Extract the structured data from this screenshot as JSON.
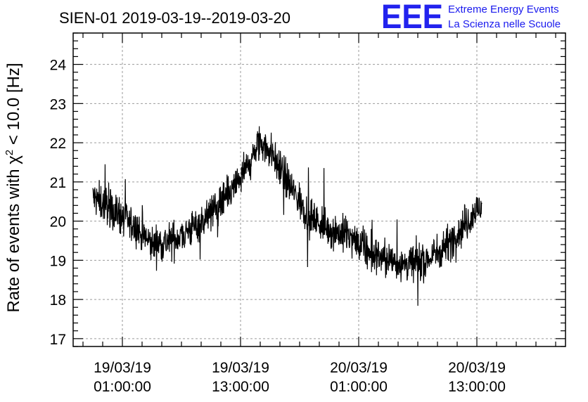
{
  "logo": {
    "mark": "EEE",
    "line1": "Extreme Energy Events",
    "line2": "La Scienza nelle Scuole",
    "color": "#2020ee"
  },
  "chart_data": {
    "type": "line",
    "title": "SIEN-01 2019-03-19--2019-03-20",
    "ylabel_prefix": "Rate of events with ",
    "ylabel_symbol": "χ",
    "ylabel_exponent": "2",
    "ylabel_suffix": " < 10.0 [Hz]",
    "xlabel": "",
    "ylim": [
      16.8,
      24.8
    ],
    "yticks": [
      17,
      18,
      19,
      20,
      21,
      22,
      23,
      24
    ],
    "xlim": [
      "2019-03-18T20:00:00",
      "2019-03-20T22:00:00"
    ],
    "xticks": [
      {
        "t": "2019-03-19T01:00:00",
        "date": "19/03/19",
        "time": "01:00:00"
      },
      {
        "t": "2019-03-19T13:00:00",
        "date": "19/03/19",
        "time": "13:00:00"
      },
      {
        "t": "2019-03-20T01:00:00",
        "date": "20/03/19",
        "time": "01:00:00"
      },
      {
        "t": "2019-03-20T13:00:00",
        "date": "20/03/19",
        "time": "13:00:00"
      }
    ],
    "grid": true,
    "line_color": "#000000",
    "series": [
      {
        "x": [
          "2019-03-18T22:00:00",
          "2019-03-19T00:00:00",
          "2019-03-19T02:00:00",
          "2019-03-19T04:00:00",
          "2019-03-19T06:00:00",
          "2019-03-19T08:00:00",
          "2019-03-19T10:00:00",
          "2019-03-19T12:00:00",
          "2019-03-19T14:00:00",
          "2019-03-19T15:00:00",
          "2019-03-19T16:00:00",
          "2019-03-19T18:00:00",
          "2019-03-19T20:00:00",
          "2019-03-19T22:00:00",
          "2019-03-20T00:00:00",
          "2019-03-20T02:00:00",
          "2019-03-20T04:00:00",
          "2019-03-20T06:00:00",
          "2019-03-20T08:00:00",
          "2019-03-20T10:00:00",
          "2019-03-20T12:00:00",
          "2019-03-20T13:30:00"
        ],
        "y": [
          20.6,
          20.3,
          19.9,
          19.4,
          19.5,
          19.8,
          20.2,
          20.7,
          21.5,
          22.0,
          21.8,
          20.9,
          20.1,
          19.8,
          19.6,
          19.2,
          19.0,
          18.9,
          19.0,
          19.4,
          20.0,
          20.4
        ]
      }
    ]
  }
}
